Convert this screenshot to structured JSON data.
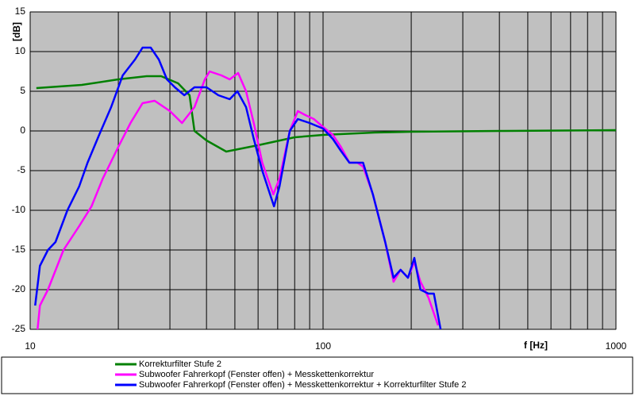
{
  "chart_data": {
    "type": "line",
    "x_label": "f [Hz]",
    "y_label": "[dB]",
    "xscale": "log",
    "xlim": [
      10,
      1000
    ],
    "xticks": [
      10,
      100,
      1000
    ],
    "xminor": [
      20,
      30,
      40,
      50,
      60,
      70,
      80,
      90,
      200,
      300,
      400,
      500,
      600,
      700,
      800,
      900
    ],
    "ylim": [
      -25,
      15
    ],
    "yticks": [
      -25,
      -20,
      -15,
      -10,
      -5,
      0,
      5,
      10,
      15
    ],
    "grid": true,
    "series": [
      {
        "name": "Korrekturfilter Stufe 2",
        "color": "#008000",
        "x": [
          10.5,
          15,
          20,
          25,
          28,
          32,
          35,
          36.4,
          40,
          46.7,
          60,
          80,
          100,
          150,
          200,
          400,
          1000
        ],
        "values": [
          5.4,
          5.8,
          6.5,
          6.9,
          6.9,
          6.0,
          4.5,
          0,
          -1.2,
          -2.6,
          -1.8,
          -0.8,
          -0.5,
          -0.2,
          -0.1,
          0,
          0.1
        ]
      },
      {
        "name": "Subwoofer Fahrerkopf (Fenster offen) + Messkettenkorrektur",
        "color": "#ff00ff",
        "x": [
          10.6,
          10.8,
          11.5,
          13,
          14.7,
          16.2,
          17.7,
          20,
          22,
          24.2,
          26.6,
          30,
          33,
          36.4,
          39.5,
          41,
          45,
          48,
          51.3,
          54.6,
          58,
          62,
          67.6,
          71,
          77,
          82,
          87,
          93,
          100,
          108,
          115,
          123,
          131,
          137,
          148,
          163,
          174,
          184,
          195,
          205,
          215,
          229,
          247
        ],
        "values": [
          -25,
          -22,
          -20,
          -15,
          -12,
          -9.5,
          -6,
          -2,
          1,
          3.5,
          3.8,
          2.5,
          1,
          3,
          6.5,
          7.5,
          7,
          6.5,
          7.3,
          5,
          1,
          -4,
          -8,
          -6,
          0,
          2.5,
          2,
          1.5,
          0.5,
          -0.5,
          -2,
          -4,
          -4,
          -4.5,
          -8,
          -14,
          -19,
          -17.5,
          -18.5,
          -16.5,
          -19,
          -21,
          -24.5
        ]
      },
      {
        "name": "Subwoofer Fahrerkopf (Fenster offen) + Messkettenkorrektur + Korrekturfilter Stufe 2",
        "color": "#0000ff",
        "x": [
          10.4,
          10.8,
          11.5,
          12.2,
          13.4,
          14.7,
          15.7,
          17.2,
          18.9,
          20.7,
          22.8,
          24.2,
          25.8,
          27.5,
          29.3,
          31.2,
          33.6,
          36.4,
          40,
          43.9,
          48,
          51,
          54.6,
          58,
          62,
          68,
          71,
          77,
          82,
          90,
          100,
          108,
          115,
          123,
          137,
          148,
          163,
          174,
          184,
          195,
          205,
          215,
          229,
          239,
          252
        ],
        "values": [
          -22,
          -17,
          -15,
          -14,
          -10,
          -7,
          -4,
          -0.5,
          3,
          7,
          9,
          10.5,
          10.5,
          9,
          6.5,
          5.5,
          4.5,
          5.5,
          5.5,
          4.5,
          4,
          5,
          3,
          -1,
          -5,
          -9.5,
          -7,
          0,
          1.5,
          1,
          0.3,
          -1,
          -2.5,
          -4,
          -4,
          -8,
          -14,
          -18.5,
          -17.5,
          -18.5,
          -16,
          -20,
          -20.5,
          -20.5,
          -25
        ]
      }
    ]
  }
}
